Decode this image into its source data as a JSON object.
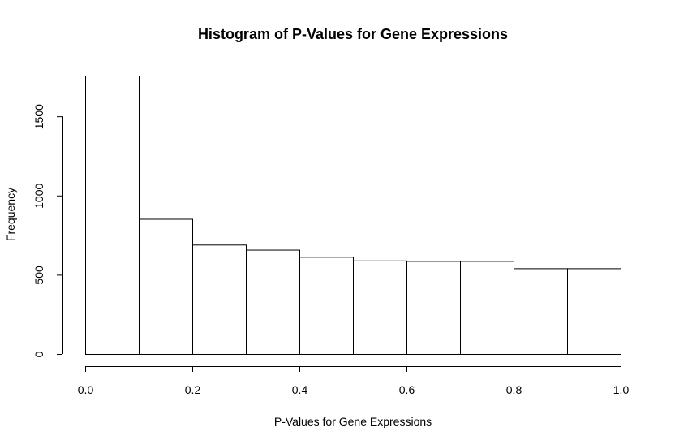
{
  "chart_data": {
    "type": "bar",
    "title": "Histogram of P-Values for Gene Expressions",
    "xlabel": "P-Values for Gene Expressions",
    "ylabel": "Frequency",
    "bins": [
      {
        "start": 0.0,
        "end": 0.1,
        "count": 1757
      },
      {
        "start": 0.1,
        "end": 0.2,
        "count": 853
      },
      {
        "start": 0.2,
        "end": 0.3,
        "count": 690
      },
      {
        "start": 0.3,
        "end": 0.4,
        "count": 658
      },
      {
        "start": 0.4,
        "end": 0.5,
        "count": 613
      },
      {
        "start": 0.5,
        "end": 0.6,
        "count": 590
      },
      {
        "start": 0.6,
        "end": 0.7,
        "count": 587
      },
      {
        "start": 0.7,
        "end": 0.8,
        "count": 587
      },
      {
        "start": 0.8,
        "end": 0.9,
        "count": 541
      },
      {
        "start": 0.9,
        "end": 1.0,
        "count": 541
      }
    ],
    "xlim": [
      0.0,
      1.0
    ],
    "ylim": [
      0,
      1757
    ],
    "x_ticks": [
      0.0,
      0.2,
      0.4,
      0.6,
      0.8,
      1.0
    ],
    "x_tick_labels": [
      "0.0",
      "0.2",
      "0.4",
      "0.6",
      "0.8",
      "1.0"
    ],
    "y_ticks": [
      0,
      500,
      1000,
      1500
    ],
    "y_tick_labels": [
      "0",
      "500",
      "1000",
      "1500"
    ],
    "grid": false,
    "legend": "none",
    "bar_fill": "#ffffff",
    "bar_stroke": "#000000"
  }
}
